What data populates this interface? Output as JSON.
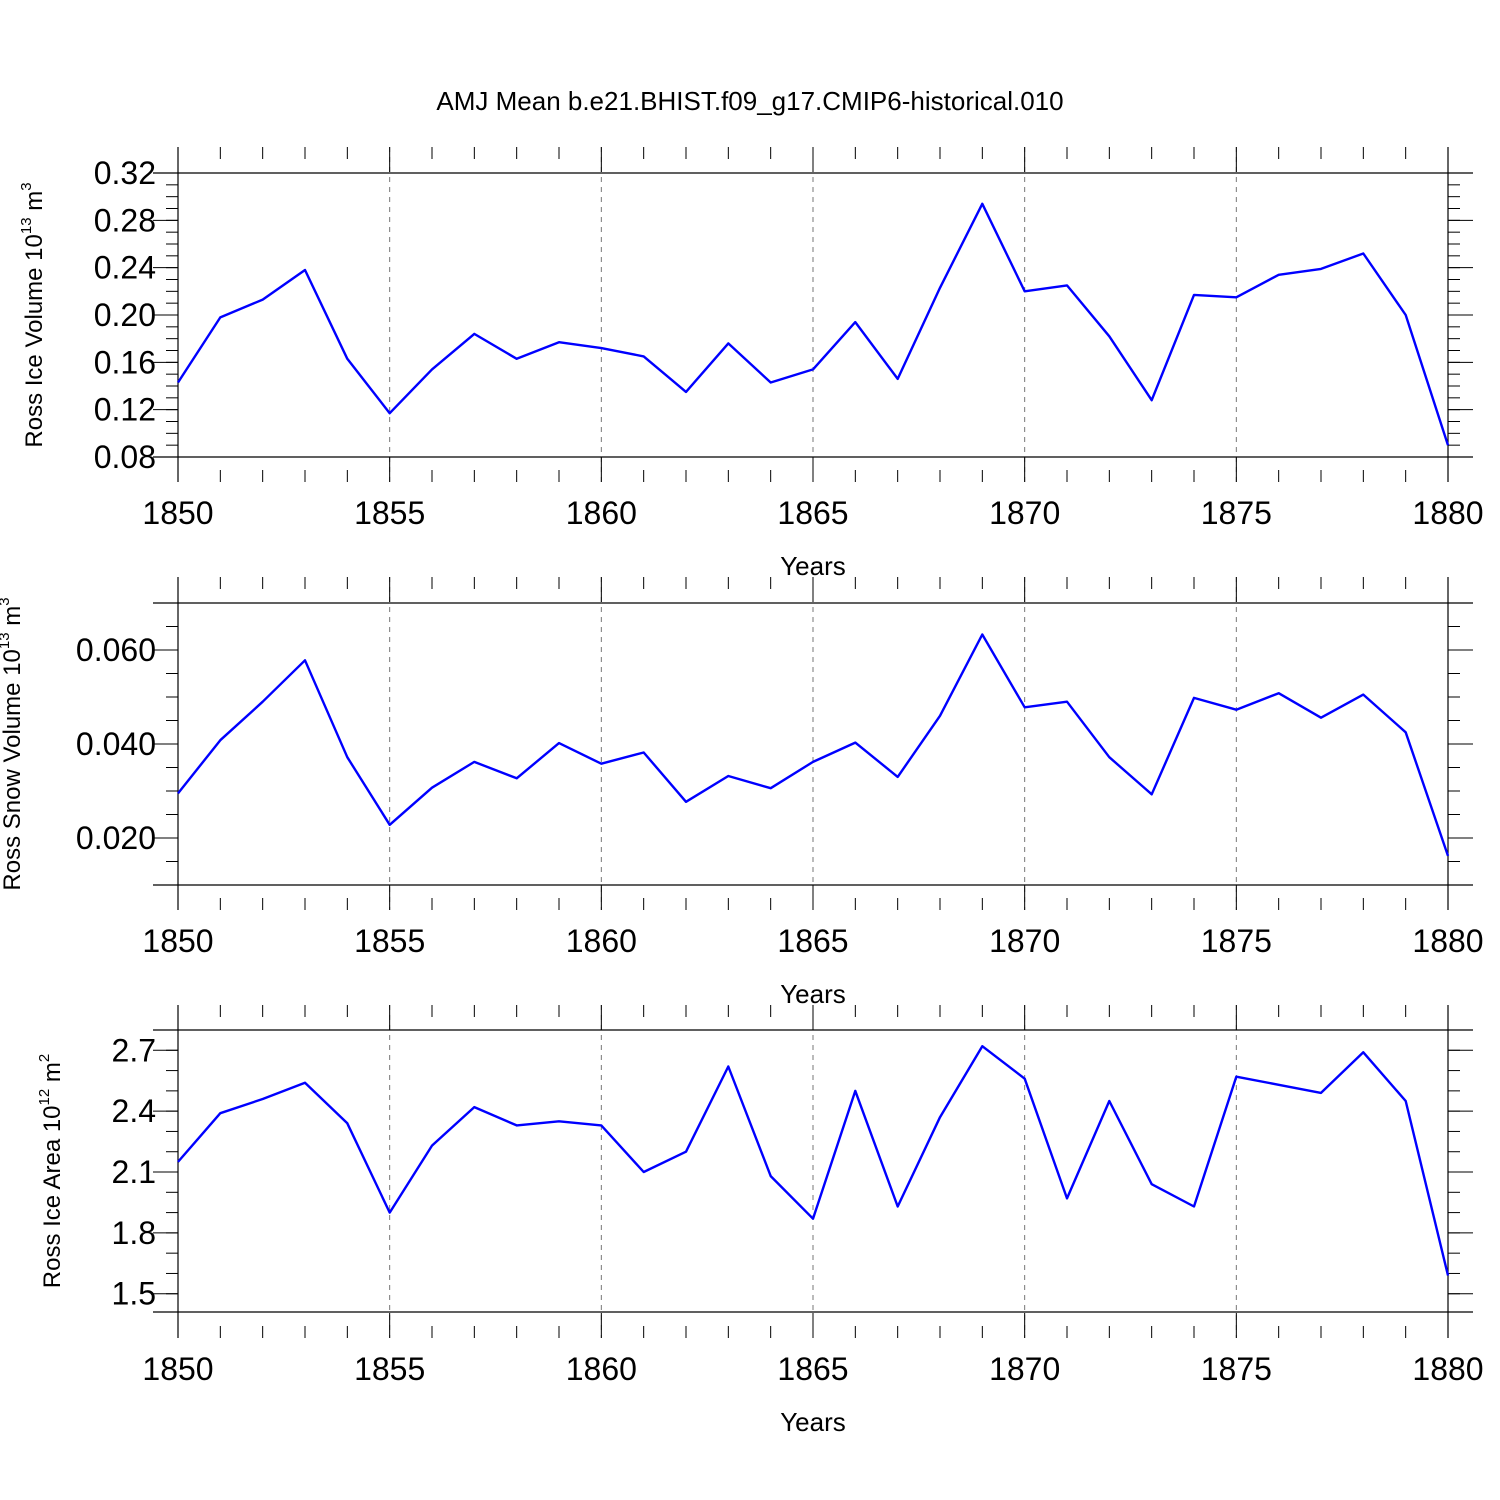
{
  "figure": {
    "title": "AMJ Mean b.e21.BHIST.f09_g17.CMIP6-historical.010"
  },
  "chart_data": [
    {
      "type": "line",
      "xlabel": "Years",
      "ylabel": {
        "text": "Ross Ice Volume 10",
        "sup1": "13",
        "mid": " m",
        "sup2": "3"
      },
      "xlim": [
        1850,
        1880
      ],
      "ylim": [
        0.08,
        0.32
      ],
      "xticks": [
        1850,
        1855,
        1860,
        1865,
        1870,
        1875,
        1880
      ],
      "yticks": [
        "0.08",
        "0.12",
        "0.16",
        "0.20",
        "0.24",
        "0.28",
        "0.32"
      ],
      "yminor_step": 0.01,
      "grid": "dashed vertical at major x ticks",
      "series": [
        {
          "color": "#0000ff",
          "x": [
            1850,
            1851,
            1852,
            1853,
            1854,
            1855,
            1856,
            1857,
            1858,
            1859,
            1860,
            1861,
            1862,
            1863,
            1864,
            1865,
            1866,
            1867,
            1868,
            1869,
            1870,
            1871,
            1872,
            1873,
            1874,
            1875,
            1876,
            1877,
            1878,
            1879,
            1880
          ],
          "values": [
            0.143,
            0.198,
            0.213,
            0.238,
            0.163,
            0.117,
            0.154,
            0.184,
            0.163,
            0.177,
            0.172,
            0.165,
            0.135,
            0.176,
            0.143,
            0.154,
            0.194,
            0.146,
            0.223,
            0.294,
            0.22,
            0.225,
            0.182,
            0.128,
            0.217,
            0.215,
            0.234,
            0.239,
            0.252,
            0.2,
            0.09
          ]
        }
      ]
    },
    {
      "type": "line",
      "xlabel": "Years",
      "ylabel": {
        "text": "Ross Snow Volume 10",
        "sup1": "13",
        "mid": " m",
        "sup2": "3"
      },
      "xlim": [
        1850,
        1880
      ],
      "ylim": [
        0.01,
        0.07
      ],
      "xticks": [
        1850,
        1855,
        1860,
        1865,
        1870,
        1875,
        1880
      ],
      "yticks": [
        "0.020",
        "0.040",
        "0.060"
      ],
      "yminor_step": 0.005,
      "grid": "dashed vertical at major x ticks",
      "series": [
        {
          "color": "#0000ff",
          "x": [
            1850,
            1851,
            1852,
            1853,
            1854,
            1855,
            1856,
            1857,
            1858,
            1859,
            1860,
            1861,
            1862,
            1863,
            1864,
            1865,
            1866,
            1867,
            1868,
            1869,
            1870,
            1871,
            1872,
            1873,
            1874,
            1875,
            1876,
            1877,
            1878,
            1879,
            1880
          ],
          "values": [
            0.0295,
            0.0408,
            0.049,
            0.0578,
            0.0372,
            0.0228,
            0.0307,
            0.0362,
            0.0327,
            0.0402,
            0.0358,
            0.0382,
            0.0277,
            0.0332,
            0.0306,
            0.0362,
            0.0403,
            0.033,
            0.046,
            0.0633,
            0.0478,
            0.049,
            0.0372,
            0.0293,
            0.0498,
            0.0473,
            0.0508,
            0.0456,
            0.0505,
            0.0425,
            0.0162
          ]
        }
      ]
    },
    {
      "type": "line",
      "xlabel": "Years",
      "ylabel": {
        "text": "Ross Ice Area 10",
        "sup1": "12",
        "mid": " m",
        "sup2": "2"
      },
      "xlim": [
        1850,
        1880
      ],
      "ylim": [
        1.41,
        2.8
      ],
      "xticks": [
        1850,
        1855,
        1860,
        1865,
        1870,
        1875,
        1880
      ],
      "yticks": [
        "1.5",
        "1.8",
        "2.1",
        "2.4",
        "2.7"
      ],
      "yminor_step": 0.1,
      "grid": "dashed vertical at major x ticks",
      "series": [
        {
          "color": "#0000ff",
          "x": [
            1850,
            1851,
            1852,
            1853,
            1854,
            1855,
            1856,
            1857,
            1858,
            1859,
            1860,
            1861,
            1862,
            1863,
            1864,
            1865,
            1866,
            1867,
            1868,
            1869,
            1870,
            1871,
            1872,
            1873,
            1874,
            1875,
            1876,
            1877,
            1878,
            1879,
            1880
          ],
          "values": [
            2.15,
            2.39,
            2.46,
            2.54,
            2.34,
            1.9,
            2.23,
            2.42,
            2.33,
            2.35,
            2.33,
            2.1,
            2.2,
            2.62,
            2.08,
            1.87,
            2.5,
            1.93,
            2.37,
            2.72,
            2.56,
            1.97,
            2.45,
            2.04,
            1.93,
            2.57,
            2.53,
            2.49,
            2.69,
            2.45,
            1.59
          ]
        }
      ]
    }
  ]
}
